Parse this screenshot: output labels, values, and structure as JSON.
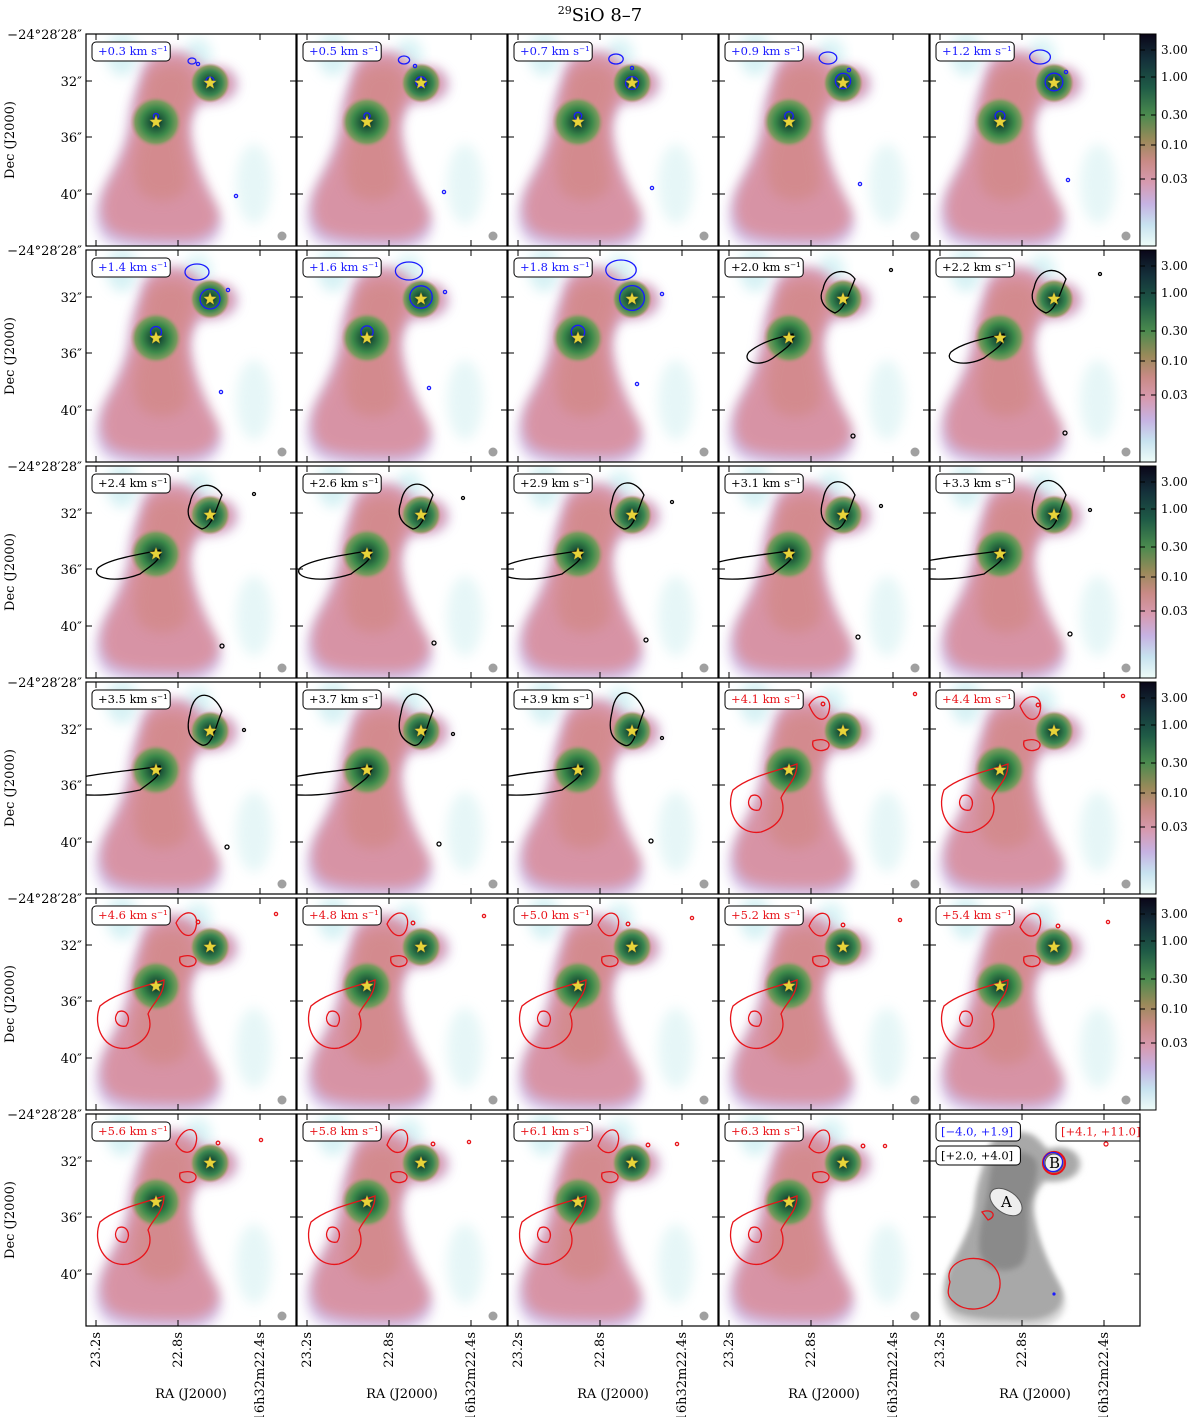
{
  "figure": {
    "title_sup": "29",
    "title_main": "SiO 8–7"
  },
  "axes": {
    "ylabel": "Dec (J2000)",
    "xlabel": "RA (J2000)",
    "ytick_labels": [
      "−24°28′28″",
      "32″",
      "36″",
      "40″"
    ],
    "xtick_labels": [
      "23.2s",
      "22.8s",
      "16h32m22.4s"
    ]
  },
  "colorbar": {
    "scale": "log",
    "tick_labels": [
      "3.00",
      "1.00",
      "0.30",
      "0.10",
      "0.03"
    ]
  },
  "chart_data": {
    "type": "channel-map",
    "title": "29SiO 8–7",
    "xlabel": "RA (J2000)",
    "ylabel": "Dec (J2000)",
    "colorbar_scale": "log",
    "colorbar_ticks": [
      3.0,
      1.0,
      0.3,
      0.1,
      0.03
    ],
    "sources": [
      "A",
      "B"
    ],
    "panels": [
      {
        "label": "+0.3 km s⁻¹",
        "velocity": 0.3,
        "color": "blue"
      },
      {
        "label": "+0.5 km s⁻¹",
        "velocity": 0.5,
        "color": "blue"
      },
      {
        "label": "+0.7 km s⁻¹",
        "velocity": 0.7,
        "color": "blue"
      },
      {
        "label": "+0.9 km s⁻¹",
        "velocity": 0.9,
        "color": "blue"
      },
      {
        "label": "+1.2 km s⁻¹",
        "velocity": 1.2,
        "color": "blue"
      },
      {
        "label": "+1.4 km s⁻¹",
        "velocity": 1.4,
        "color": "blue"
      },
      {
        "label": "+1.6 km s⁻¹",
        "velocity": 1.6,
        "color": "blue"
      },
      {
        "label": "+1.8 km s⁻¹",
        "velocity": 1.8,
        "color": "blue"
      },
      {
        "label": "+2.0 km s⁻¹",
        "velocity": 2.0,
        "color": "black"
      },
      {
        "label": "+2.2 km s⁻¹",
        "velocity": 2.2,
        "color": "black"
      },
      {
        "label": "+2.4 km s⁻¹",
        "velocity": 2.4,
        "color": "black"
      },
      {
        "label": "+2.6 km s⁻¹",
        "velocity": 2.6,
        "color": "black"
      },
      {
        "label": "+2.9 km s⁻¹",
        "velocity": 2.9,
        "color": "black"
      },
      {
        "label": "+3.1 km s⁻¹",
        "velocity": 3.1,
        "color": "black"
      },
      {
        "label": "+3.3 km s⁻¹",
        "velocity": 3.3,
        "color": "black"
      },
      {
        "label": "+3.5 km s⁻¹",
        "velocity": 3.5,
        "color": "black"
      },
      {
        "label": "+3.7 km s⁻¹",
        "velocity": 3.7,
        "color": "black"
      },
      {
        "label": "+3.9 km s⁻¹",
        "velocity": 3.9,
        "color": "black"
      },
      {
        "label": "+4.1 km s⁻¹",
        "velocity": 4.1,
        "color": "red"
      },
      {
        "label": "+4.4 km s⁻¹",
        "velocity": 4.4,
        "color": "red"
      },
      {
        "label": "+4.6 km s⁻¹",
        "velocity": 4.6,
        "color": "red"
      },
      {
        "label": "+4.8 km s⁻¹",
        "velocity": 4.8,
        "color": "red"
      },
      {
        "label": "+5.0 km s⁻¹",
        "velocity": 5.0,
        "color": "red"
      },
      {
        "label": "+5.2 km s⁻¹",
        "velocity": 5.2,
        "color": "red"
      },
      {
        "label": "+5.4 km s⁻¹",
        "velocity": 5.4,
        "color": "red"
      },
      {
        "label": "+5.6 km s⁻¹",
        "velocity": 5.6,
        "color": "red"
      },
      {
        "label": "+5.8 km s⁻¹",
        "velocity": 5.8,
        "color": "red"
      },
      {
        "label": "+6.1 km s⁻¹",
        "velocity": 6.1,
        "color": "red"
      },
      {
        "label": "+6.3 km s⁻¹",
        "velocity": 6.3,
        "color": "red"
      }
    ],
    "summary_panel": {
      "ranges": [
        {
          "label": "[−4.0, +1.9]",
          "color": "blue"
        },
        {
          "label": "[+2.0, +4.0]",
          "color": "black"
        },
        {
          "label": "[+4.1, +11.0]",
          "color": "red"
        }
      ],
      "source_labels": [
        "A",
        "B"
      ]
    }
  },
  "colors": {
    "blue": "#1a1aff",
    "black": "#000000",
    "red": "#e8141a",
    "star": "#e8d43a"
  }
}
